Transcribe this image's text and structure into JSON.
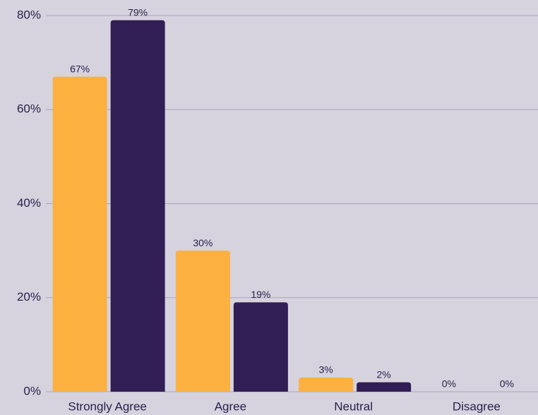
{
  "chart_data": {
    "type": "bar",
    "categories": [
      "Strongly Agree",
      "Agree",
      "Neutral",
      "Disagree"
    ],
    "series": [
      {
        "color": "#fbb040",
        "values": [
          67,
          30,
          3,
          0
        ],
        "value_labels": [
          "67%",
          "30%",
          "3%",
          "0%"
        ]
      },
      {
        "color": "#311e55",
        "values": [
          79,
          19,
          2,
          0
        ],
        "value_labels": [
          "79%",
          "19%",
          "2%",
          "0%"
        ]
      }
    ],
    "ylim": [
      0,
      80
    ],
    "yticks": [
      {
        "value": 0,
        "label": "0%"
      },
      {
        "value": 20,
        "label": "20%"
      },
      {
        "value": 40,
        "label": "40%"
      },
      {
        "value": 60,
        "label": "60%"
      },
      {
        "value": 80,
        "label": "80%"
      }
    ],
    "grid": true
  }
}
